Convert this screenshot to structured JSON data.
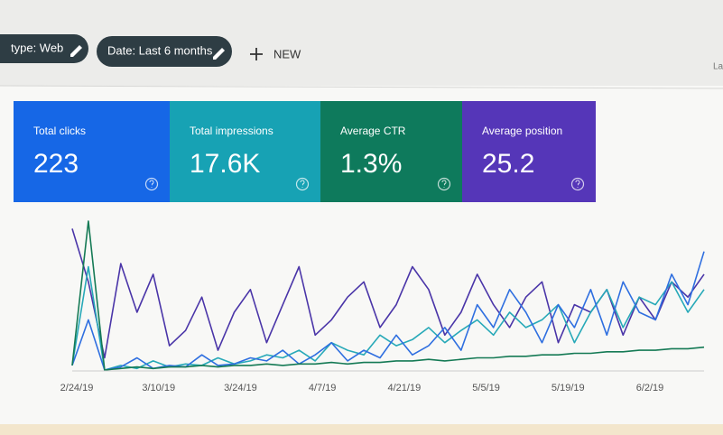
{
  "toolbar": {
    "chips": [
      "type: Web",
      "Date: Last 6 months"
    ],
    "new_button": "NEW",
    "right_text": "La"
  },
  "cards": [
    {
      "title": "Total clicks",
      "value": "223",
      "color": "#1667e6"
    },
    {
      "title": "Total impressions",
      "value": "17.6K",
      "color": "#17a2b4"
    },
    {
      "title": "Average CTR",
      "value": "1.3%",
      "color": "#0e7a5c"
    },
    {
      "title": "Average position",
      "value": "25.2",
      "color": "#5536b8"
    }
  ],
  "chart_data": {
    "type": "line",
    "x_tick_labels": [
      "2/24/19",
      "3/10/19",
      "3/24/19",
      "4/7/19",
      "4/21/19",
      "5/5/19",
      "5/19/19",
      "6/2/19"
    ],
    "series": [
      {
        "color": "#4a35a8",
        "values": [
          95,
          60,
          10,
          72,
          40,
          65,
          18,
          28,
          50,
          15,
          40,
          55,
          20,
          45,
          70,
          25,
          35,
          50,
          60,
          30,
          45,
          70,
          55,
          25,
          40,
          65,
          45,
          30,
          50,
          60,
          20,
          45,
          40,
          55,
          25,
          50,
          35,
          60,
          50,
          65
        ]
      },
      {
        "color": "#27a9b8",
        "values": [
          5,
          70,
          2,
          5,
          3,
          8,
          4,
          6,
          5,
          10,
          6,
          8,
          12,
          10,
          15,
          8,
          20,
          15,
          12,
          25,
          18,
          22,
          30,
          20,
          28,
          35,
          25,
          40,
          30,
          35,
          45,
          20,
          40,
          55,
          30,
          50,
          45,
          60,
          40,
          55
        ]
      },
      {
        "color": "#2f6fe0",
        "values": [
          5,
          35,
          2,
          4,
          10,
          3,
          5,
          4,
          12,
          5,
          6,
          10,
          8,
          15,
          6,
          12,
          20,
          8,
          15,
          10,
          25,
          12,
          18,
          30,
          15,
          45,
          30,
          55,
          40,
          20,
          45,
          30,
          55,
          25,
          60,
          40,
          35,
          65,
          45,
          80
        ]
      },
      {
        "color": "#157a55",
        "values": [
          5,
          100,
          2,
          3,
          4,
          3,
          4,
          4,
          5,
          4,
          5,
          5,
          6,
          5,
          6,
          6,
          7,
          6,
          7,
          7,
          8,
          8,
          9,
          8,
          9,
          10,
          10,
          11,
          11,
          12,
          12,
          13,
          13,
          14,
          14,
          15,
          15,
          16,
          16,
          17
        ]
      }
    ]
  }
}
